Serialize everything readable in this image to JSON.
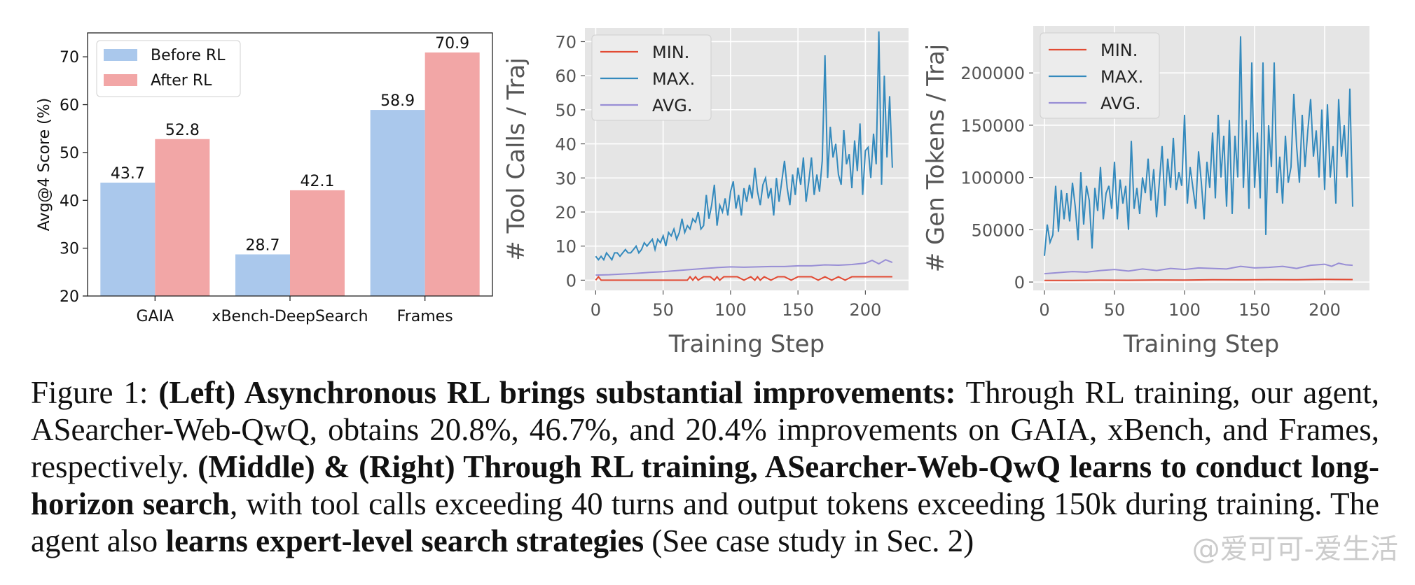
{
  "chart_data": [
    {
      "type": "bar",
      "categories": [
        "GAIA",
        "xBench-DeepSearch",
        "Frames"
      ],
      "series": [
        {
          "name": "Before RL",
          "values": [
            43.7,
            28.7,
            58.9
          ],
          "color": "#aac8ec"
        },
        {
          "name": "After RL",
          "values": [
            52.8,
            42.1,
            70.9
          ],
          "color": "#f2a6a6"
        }
      ],
      "value_labels": [
        [
          "43.7",
          "28.7",
          "58.9"
        ],
        [
          "52.8",
          "42.1",
          "70.9"
        ]
      ],
      "ylabel": "Avg@4 Score (%)",
      "xlabel": "",
      "ylim": [
        20,
        75
      ],
      "yticks": [
        20,
        30,
        40,
        50,
        60,
        70
      ],
      "legend": "top-left",
      "grid": false
    },
    {
      "type": "line",
      "xlabel": "Training Step",
      "ylabel": "# Tool Calls / Traj",
      "xlim": [
        -8,
        232
      ],
      "ylim": [
        -3,
        74
      ],
      "xticks": [
        0,
        50,
        100,
        150,
        200
      ],
      "yticks": [
        0,
        10,
        20,
        30,
        40,
        50,
        60,
        70
      ],
      "grid": true,
      "background": "#e5e5e5",
      "legend": "top-left",
      "series": [
        {
          "name": "MIN.",
          "color": "#e24a33",
          "x": [
            0,
            2,
            4,
            10,
            20,
            30,
            40,
            50,
            60,
            68,
            70,
            72,
            74,
            76,
            80,
            85,
            88,
            90,
            92,
            95,
            100,
            105,
            110,
            115,
            118,
            120,
            122,
            125,
            130,
            135,
            140,
            145,
            150,
            155,
            160,
            165,
            170,
            175,
            180,
            185,
            190,
            200,
            210,
            220
          ],
          "y": [
            0,
            1,
            0,
            0,
            0,
            0,
            0,
            0,
            0,
            0,
            1,
            0,
            1,
            0,
            1,
            1,
            0,
            1,
            0,
            1,
            1,
            1,
            0,
            1,
            0,
            1,
            0,
            1,
            0,
            1,
            1,
            0,
            1,
            1,
            1,
            0,
            1,
            0,
            1,
            0,
            1,
            1,
            1,
            1
          ]
        },
        {
          "name": "MAX.",
          "color": "#348abd",
          "x": [
            0,
            2,
            4,
            6,
            8,
            10,
            12,
            14,
            16,
            18,
            20,
            22,
            24,
            26,
            28,
            30,
            32,
            34,
            36,
            38,
            40,
            42,
            44,
            46,
            48,
            50,
            52,
            54,
            56,
            58,
            60,
            62,
            64,
            66,
            68,
            70,
            72,
            74,
            76,
            78,
            80,
            82,
            84,
            86,
            88,
            90,
            92,
            94,
            96,
            98,
            100,
            102,
            104,
            106,
            108,
            110,
            112,
            114,
            116,
            118,
            120,
            122,
            124,
            126,
            128,
            130,
            132,
            134,
            136,
            138,
            140,
            142,
            144,
            146,
            148,
            150,
            152,
            154,
            156,
            158,
            160,
            162,
            164,
            166,
            168,
            170,
            172,
            174,
            176,
            178,
            180,
            182,
            184,
            186,
            188,
            190,
            192,
            194,
            196,
            198,
            200,
            202,
            204,
            206,
            208,
            210,
            212,
            214,
            216,
            218,
            220
          ],
          "y": [
            7,
            6,
            7,
            6,
            8,
            7,
            6,
            8,
            8,
            7,
            8,
            9,
            8,
            8,
            9,
            10,
            8,
            9,
            11,
            10,
            11,
            12,
            9,
            12,
            11,
            13,
            10,
            14,
            13,
            15,
            12,
            14,
            18,
            14,
            16,
            15,
            18,
            17,
            20,
            15,
            16,
            25,
            18,
            22,
            28,
            16,
            22,
            20,
            24,
            19,
            26,
            29,
            21,
            25,
            19,
            27,
            23,
            28,
            24,
            33,
            26,
            22,
            28,
            30,
            24,
            27,
            19,
            30,
            23,
            29,
            35,
            27,
            22,
            31,
            25,
            33,
            28,
            36,
            23,
            29,
            36,
            25,
            31,
            26,
            35,
            66,
            30,
            45,
            36,
            40,
            31,
            28,
            44,
            34,
            37,
            27,
            41,
            32,
            46,
            25,
            38,
            39,
            30,
            43,
            34,
            73,
            28,
            60,
            36,
            54,
            33
          ]
        },
        {
          "name": "AVG.",
          "color": "#988ed5",
          "x": [
            0,
            10,
            20,
            30,
            40,
            50,
            60,
            70,
            80,
            90,
            100,
            110,
            120,
            130,
            140,
            150,
            160,
            170,
            180,
            190,
            200,
            205,
            210,
            215,
            220
          ],
          "y": [
            1.5,
            1.6,
            1.8,
            2,
            2.3,
            2.5,
            2.8,
            3.1,
            3.4,
            3.7,
            3.9,
            3.8,
            3.9,
            4,
            4,
            4.2,
            4.2,
            4.5,
            4.4,
            4.6,
            5,
            5.8,
            4.8,
            6,
            5.2
          ]
        }
      ]
    },
    {
      "type": "line",
      "xlabel": "Training Step",
      "ylabel": "# Gen Tokens / Traj",
      "xlim": [
        -8,
        232
      ],
      "ylim": [
        -8000,
        245000
      ],
      "xticks": [
        0,
        50,
        100,
        150,
        200
      ],
      "yticks": [
        0,
        50000,
        100000,
        150000,
        200000
      ],
      "grid": true,
      "background": "#e5e5e5",
      "legend": "top-left",
      "series": [
        {
          "name": "MIN.",
          "color": "#e24a33",
          "x": [
            0,
            20,
            40,
            60,
            80,
            100,
            120,
            140,
            160,
            180,
            200,
            220
          ],
          "y": [
            1500,
            1600,
            1800,
            1700,
            2000,
            1900,
            2200,
            2100,
            2300,
            2200,
            2500,
            2400
          ]
        },
        {
          "name": "MAX.",
          "color": "#348abd",
          "x": [
            0,
            2,
            4,
            6,
            8,
            10,
            12,
            14,
            16,
            18,
            20,
            22,
            24,
            26,
            28,
            30,
            32,
            34,
            36,
            38,
            40,
            42,
            44,
            46,
            48,
            50,
            52,
            54,
            56,
            58,
            60,
            62,
            64,
            66,
            68,
            70,
            72,
            74,
            76,
            78,
            80,
            82,
            84,
            86,
            88,
            90,
            92,
            94,
            96,
            98,
            100,
            102,
            104,
            106,
            108,
            110,
            112,
            114,
            116,
            118,
            120,
            122,
            124,
            126,
            128,
            130,
            132,
            134,
            136,
            138,
            140,
            142,
            144,
            146,
            148,
            150,
            152,
            154,
            156,
            158,
            160,
            162,
            164,
            166,
            168,
            170,
            172,
            174,
            176,
            178,
            180,
            182,
            184,
            186,
            188,
            190,
            192,
            194,
            196,
            198,
            200,
            202,
            204,
            206,
            208,
            210,
            212,
            214,
            216,
            218,
            220
          ],
          "y": [
            25000,
            55000,
            38000,
            45000,
            92000,
            48000,
            88000,
            60000,
            85000,
            58000,
            95000,
            72000,
            40000,
            105000,
            55000,
            92000,
            78000,
            32000,
            90000,
            68000,
            110000,
            60000,
            85000,
            92000,
            70000,
            115000,
            60000,
            98000,
            75000,
            92000,
            50000,
            135000,
            70000,
            90000,
            65000,
            100000,
            85000,
            118000,
            78000,
            108000,
            62000,
            95000,
            130000,
            73000,
            118000,
            90000,
            138000,
            88000,
            105000,
            92000,
            160000,
            75000,
            110000,
            90000,
            70000,
            125000,
            95000,
            60000,
            115000,
            90000,
            143000,
            80000,
            160000,
            100000,
            140000,
            72000,
            155000,
            65000,
            140000,
            100000,
            235000,
            90000,
            155000,
            70000,
            210000,
            90000,
            143000,
            80000,
            210000,
            45000,
            150000,
            110000,
            210000,
            85000,
            120000,
            75000,
            140000,
            95000,
            110000,
            180000,
            130000,
            95000,
            160000,
            110000,
            145000,
            175000,
            120000,
            145000,
            100000,
            165000,
            88000,
            170000,
            100000,
            130000,
            75000,
            175000,
            120000,
            150000,
            100000,
            185000,
            72000
          ]
        },
        {
          "name": "AVG.",
          "color": "#988ed5",
          "x": [
            0,
            10,
            20,
            30,
            40,
            50,
            60,
            70,
            80,
            90,
            100,
            110,
            120,
            130,
            140,
            150,
            160,
            170,
            180,
            190,
            200,
            205,
            210,
            215,
            220
          ],
          "y": [
            8000,
            9000,
            10000,
            9500,
            11000,
            12000,
            10500,
            12500,
            11000,
            13000,
            12000,
            13500,
            13000,
            12500,
            15000,
            13500,
            14000,
            15000,
            13000,
            16000,
            17000,
            15000,
            18000,
            16500,
            16000
          ]
        }
      ]
    }
  ],
  "caption": {
    "fig_label": "Figure 1:",
    "bold1": "(Left) Asynchronous RL brings substantial improvements:",
    "text1": "Through RL training, our agent, ASearcher-Web-QwQ, obtains 20.8%, 46.7%, and 20.4% improvements on GAIA, xBench, and Frames, respectively.",
    "bold2": "(Middle) & (Right) Through RL training, ASearcher-Web-QwQ learns to conduct long-horizon search",
    "text2": ", with tool calls exceeding 40 turns and output tokens exceeding 150k during training. The agent also",
    "bold3": "learns expert-level search strategies",
    "text3": "(See case study in Sec. 2)"
  },
  "watermark": "@爱可可-爱生活"
}
